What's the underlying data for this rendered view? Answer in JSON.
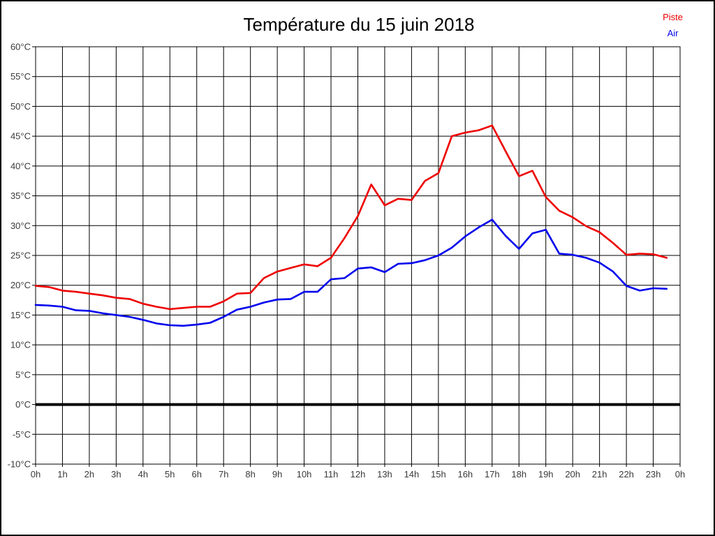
{
  "chart_data": {
    "type": "line",
    "title": "Température du 15 juin 2018",
    "xlabel": "",
    "ylabel": "",
    "ylim": [
      -10,
      60
    ],
    "ytick_step": 5,
    "y_unit": "°C",
    "y_tick_labels": [
      "60°C",
      "55°C",
      "50°C",
      "45°C",
      "40°C",
      "35°C",
      "30°C",
      "25°C",
      "20°C",
      "15°C",
      "10°C",
      "5°C",
      "0°C",
      "-5°C",
      "-10°C"
    ],
    "x_tick_labels": [
      "0h",
      "1h",
      "2h",
      "3h",
      "4h",
      "5h",
      "6h",
      "7h",
      "8h",
      "9h",
      "10h",
      "11h",
      "12h",
      "13h",
      "14h",
      "15h",
      "16h",
      "17h",
      "18h",
      "19h",
      "20h",
      "21h",
      "22h",
      "23h",
      "0h"
    ],
    "x_hours_span": 24,
    "x_step_hours": 0.5,
    "grid": true,
    "zero_line_bold": true,
    "legend_position": "top-right",
    "series": [
      {
        "name": "Piste",
        "color": "#ee0000",
        "values": [
          19.9,
          19.7,
          19.1,
          18.9,
          18.6,
          18.3,
          17.9,
          17.7,
          16.9,
          16.4,
          16.0,
          16.2,
          16.4,
          16.4,
          17.3,
          18.6,
          18.7,
          21.2,
          22.3,
          22.9,
          23.5,
          23.2,
          24.6,
          27.9,
          31.6,
          36.9,
          33.4,
          34.5,
          34.3,
          37.5,
          38.8,
          45.0,
          45.6,
          46.0,
          46.8,
          42.5,
          38.3,
          39.2,
          34.8,
          32.5,
          31.4,
          29.9,
          28.9,
          27.1,
          25.1,
          25.3,
          25.2,
          24.6
        ]
      },
      {
        "name": "Air",
        "color": "#0000ee",
        "values": [
          16.7,
          16.6,
          16.4,
          15.8,
          15.7,
          15.3,
          15.0,
          14.7,
          14.2,
          13.6,
          13.3,
          13.2,
          13.4,
          13.7,
          14.7,
          15.9,
          16.4,
          17.1,
          17.6,
          17.7,
          18.9,
          18.9,
          21.0,
          21.2,
          22.8,
          23.0,
          22.2,
          23.6,
          23.7,
          24.2,
          25.0,
          26.3,
          28.2,
          29.7,
          31.0,
          28.3,
          26.1,
          28.7,
          29.3,
          25.3,
          25.1,
          24.6,
          23.8,
          22.3,
          19.9,
          19.1,
          19.5,
          19.4
        ]
      }
    ]
  }
}
